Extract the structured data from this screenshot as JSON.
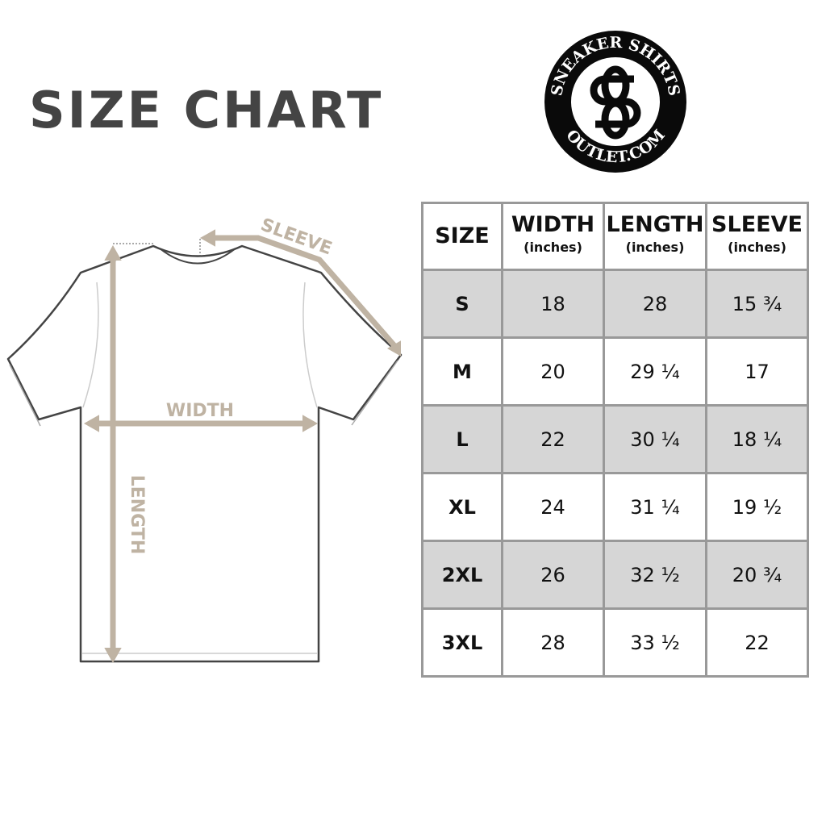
{
  "title": "SIZE CHART",
  "logo": {
    "top_text": "SNEAKER SHIRTS",
    "bottom_text": "OUTLET.COM",
    "monogram": "SS"
  },
  "diagram": {
    "sleeve_label": "SLEEVE",
    "width_label": "WIDTH",
    "length_label": "LENGTH",
    "arrow_color": "#bfb3a3"
  },
  "table": {
    "headers": [
      {
        "label": "SIZE",
        "sub": ""
      },
      {
        "label": "WIDTH",
        "sub": "(inches)"
      },
      {
        "label": "LENGTH",
        "sub": "(inches)"
      },
      {
        "label": "SLEEVE",
        "sub": "(inches)"
      }
    ],
    "rows": [
      [
        "S",
        "18",
        "28",
        "15 ¾"
      ],
      [
        "M",
        "20",
        "29 ¼",
        "17"
      ],
      [
        "L",
        "22",
        "30 ¼",
        "18 ¼"
      ],
      [
        "XL",
        "24",
        "31 ¼",
        "19 ½"
      ],
      [
        "2XL",
        "26",
        "32 ½",
        "20 ¾"
      ],
      [
        "3XL",
        "28",
        "33 ½",
        "22"
      ]
    ],
    "stripe_color": "#d6d6d6",
    "border_color": "#999999"
  }
}
